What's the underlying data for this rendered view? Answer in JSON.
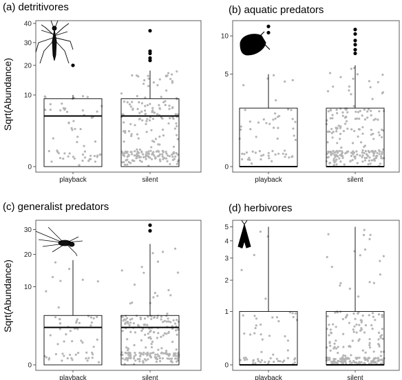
{
  "colors": {
    "jitter": "#b5b5b5",
    "outlier": "#000000",
    "box": "#000000"
  },
  "chart_data": [
    {
      "type": "box",
      "title": "(a) detritivores",
      "ylabel": "Sqrt(Abundance)",
      "scale": "sqrt",
      "ylim": [
        0,
        40
      ],
      "yticks": [
        0,
        10,
        20,
        30,
        40
      ],
      "icon": "mosquito-icon",
      "categories": [
        "playback",
        "silent"
      ],
      "boxes": [
        {
          "category": "playback",
          "q1": 0,
          "median": 5,
          "q3": 9,
          "whisker_low": 0,
          "whisker_high": 10,
          "outliers": [
            20
          ]
        },
        {
          "category": "silent",
          "q1": 0,
          "median": 5,
          "q3": 9,
          "whisker_low": 0,
          "whisker_high": 18,
          "outliers": [
            22,
            23,
            25,
            26,
            36
          ]
        }
      ]
    },
    {
      "type": "box",
      "title": "(b) aquatic predators",
      "ylabel": "",
      "scale": "sqrt",
      "ylim": [
        0,
        12
      ],
      "yticks": [
        0,
        5,
        10
      ],
      "icon": "water-beetle-icon",
      "categories": [
        "playback",
        "silent"
      ],
      "boxes": [
        {
          "category": "playback",
          "q1": 0,
          "median": 0,
          "q3": 2,
          "whisker_low": 0,
          "whisker_high": 5,
          "outliers": [
            10.5,
            11.5
          ]
        },
        {
          "category": "silent",
          "q1": 0,
          "median": 0,
          "q3": 2,
          "whisker_low": 0,
          "whisker_high": 6,
          "outliers": [
            7.5,
            8,
            8.7,
            9.3,
            10.3,
            11
          ]
        }
      ]
    },
    {
      "type": "box",
      "title": "(c) generalist predators",
      "ylabel": "Sqrt(Abundance)",
      "scale": "sqrt",
      "ylim": [
        0,
        33
      ],
      "yticks": [
        0,
        10,
        20,
        30
      ],
      "icon": "spider-icon",
      "categories": [
        "playback",
        "silent"
      ],
      "boxes": [
        {
          "category": "playback",
          "q1": 0,
          "median": 2.3,
          "q3": 4,
          "whisker_low": 0,
          "whisker_high": 18,
          "outliers": []
        },
        {
          "category": "silent",
          "q1": 0,
          "median": 2.3,
          "q3": 4,
          "whisker_low": 0,
          "whisker_high": 24,
          "outliers": [
            29.5,
            32
          ]
        }
      ]
    },
    {
      "type": "box",
      "title": "(d) herbivores",
      "ylabel": "",
      "scale": "log1p",
      "ylim": [
        0,
        5.3
      ],
      "yticks": [
        0,
        1,
        2,
        3,
        4,
        5
      ],
      "icon": "moth-icon",
      "categories": [
        "playback",
        "silent"
      ],
      "boxes": [
        {
          "category": "playback",
          "q1": 0,
          "median": 0,
          "q3": 1,
          "whisker_low": 0,
          "whisker_high": 5,
          "outliers": []
        },
        {
          "category": "silent",
          "q1": 0,
          "median": 0,
          "q3": 1,
          "whisker_low": 0,
          "whisker_high": 5,
          "outliers": []
        }
      ]
    }
  ]
}
